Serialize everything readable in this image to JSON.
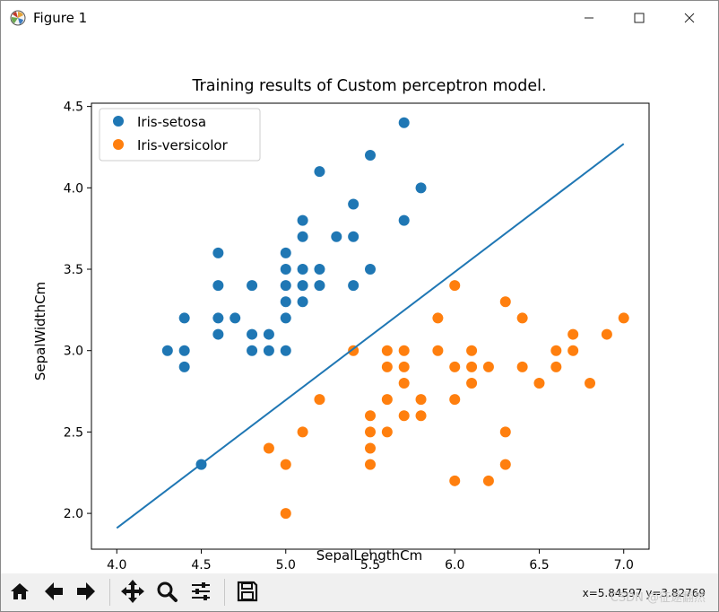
{
  "window": {
    "title": "Figure 1",
    "icons": {
      "app": "matplotlib-icon",
      "minimize": "minimize-icon",
      "maximize": "maximize-icon",
      "close": "close-icon"
    }
  },
  "toolbar": {
    "buttons": [
      {
        "name": "home-button",
        "icon": "home-icon"
      },
      {
        "name": "back-button",
        "icon": "arrow-left-icon"
      },
      {
        "name": "forward-button",
        "icon": "arrow-right-icon"
      },
      {
        "name": "pan-button",
        "icon": "move-icon"
      },
      {
        "name": "zoom-button",
        "icon": "zoom-icon"
      },
      {
        "name": "configure-button",
        "icon": "sliders-icon"
      },
      {
        "name": "save-button",
        "icon": "save-icon"
      }
    ],
    "coordinates": "x=5.84597 y=3.82769",
    "watermark": "CSDN @征途翻然"
  },
  "chart_data": {
    "type": "scatter",
    "title": "Training results of Custom perceptron model.",
    "xlabel": "SepalLengthCm",
    "ylabel": "SepalWidthCm",
    "xlim": [
      3.85,
      7.15
    ],
    "ylim": [
      1.78,
      4.52
    ],
    "xticks": [
      "4.0",
      "4.5",
      "5.0",
      "5.5",
      "6.0",
      "6.5",
      "7.0"
    ],
    "yticks": [
      "2.0",
      "2.5",
      "3.0",
      "3.5",
      "4.0",
      "4.5"
    ],
    "legend_position": "upper-left",
    "grid": false,
    "series": [
      {
        "name": "Iris-setosa",
        "color": "#1f77b4",
        "points": [
          [
            4.3,
            3.0
          ],
          [
            4.4,
            2.9
          ],
          [
            4.4,
            3.0
          ],
          [
            4.4,
            3.2
          ],
          [
            4.5,
            2.3
          ],
          [
            4.6,
            3.1
          ],
          [
            4.6,
            3.2
          ],
          [
            4.6,
            3.4
          ],
          [
            4.6,
            3.6
          ],
          [
            4.7,
            3.2
          ],
          [
            4.8,
            3.0
          ],
          [
            4.8,
            3.1
          ],
          [
            4.8,
            3.4
          ],
          [
            4.9,
            3.0
          ],
          [
            4.9,
            3.1
          ],
          [
            5.0,
            3.0
          ],
          [
            5.0,
            3.2
          ],
          [
            5.0,
            3.3
          ],
          [
            5.0,
            3.4
          ],
          [
            5.0,
            3.5
          ],
          [
            5.0,
            3.6
          ],
          [
            5.1,
            3.3
          ],
          [
            5.1,
            3.4
          ],
          [
            5.1,
            3.5
          ],
          [
            5.1,
            3.7
          ],
          [
            5.1,
            3.8
          ],
          [
            5.2,
            3.4
          ],
          [
            5.2,
            3.5
          ],
          [
            5.2,
            4.1
          ],
          [
            5.3,
            3.7
          ],
          [
            5.4,
            3.4
          ],
          [
            5.4,
            3.7
          ],
          [
            5.4,
            3.9
          ],
          [
            5.5,
            3.5
          ],
          [
            5.5,
            4.2
          ],
          [
            5.7,
            3.8
          ],
          [
            5.7,
            4.4
          ],
          [
            5.8,
            4.0
          ]
        ]
      },
      {
        "name": "Iris-versicolor",
        "color": "#ff7f0e",
        "points": [
          [
            4.9,
            2.4
          ],
          [
            5.0,
            2.0
          ],
          [
            5.0,
            2.3
          ],
          [
            5.1,
            2.5
          ],
          [
            5.2,
            2.7
          ],
          [
            5.4,
            3.0
          ],
          [
            5.5,
            2.3
          ],
          [
            5.5,
            2.4
          ],
          [
            5.5,
            2.5
          ],
          [
            5.5,
            2.6
          ],
          [
            5.6,
            2.5
          ],
          [
            5.6,
            2.7
          ],
          [
            5.6,
            2.9
          ],
          [
            5.6,
            3.0
          ],
          [
            5.7,
            2.6
          ],
          [
            5.7,
            2.8
          ],
          [
            5.7,
            2.9
          ],
          [
            5.7,
            3.0
          ],
          [
            5.8,
            2.6
          ],
          [
            5.8,
            2.7
          ],
          [
            5.9,
            3.0
          ],
          [
            5.9,
            3.2
          ],
          [
            6.0,
            2.2
          ],
          [
            6.0,
            2.7
          ],
          [
            6.0,
            2.9
          ],
          [
            6.0,
            3.4
          ],
          [
            6.1,
            2.8
          ],
          [
            6.1,
            2.9
          ],
          [
            6.1,
            3.0
          ],
          [
            6.2,
            2.2
          ],
          [
            6.2,
            2.9
          ],
          [
            6.3,
            2.3
          ],
          [
            6.3,
            2.5
          ],
          [
            6.3,
            3.3
          ],
          [
            6.4,
            2.9
          ],
          [
            6.4,
            3.2
          ],
          [
            6.5,
            2.8
          ],
          [
            6.6,
            2.9
          ],
          [
            6.6,
            3.0
          ],
          [
            6.7,
            3.0
          ],
          [
            6.7,
            3.1
          ],
          [
            6.8,
            2.8
          ],
          [
            6.9,
            3.1
          ],
          [
            7.0,
            3.2
          ]
        ]
      }
    ],
    "line": {
      "color": "#1f77b4",
      "x": [
        4.0,
        7.0
      ],
      "y": [
        1.91,
        4.27
      ]
    }
  }
}
